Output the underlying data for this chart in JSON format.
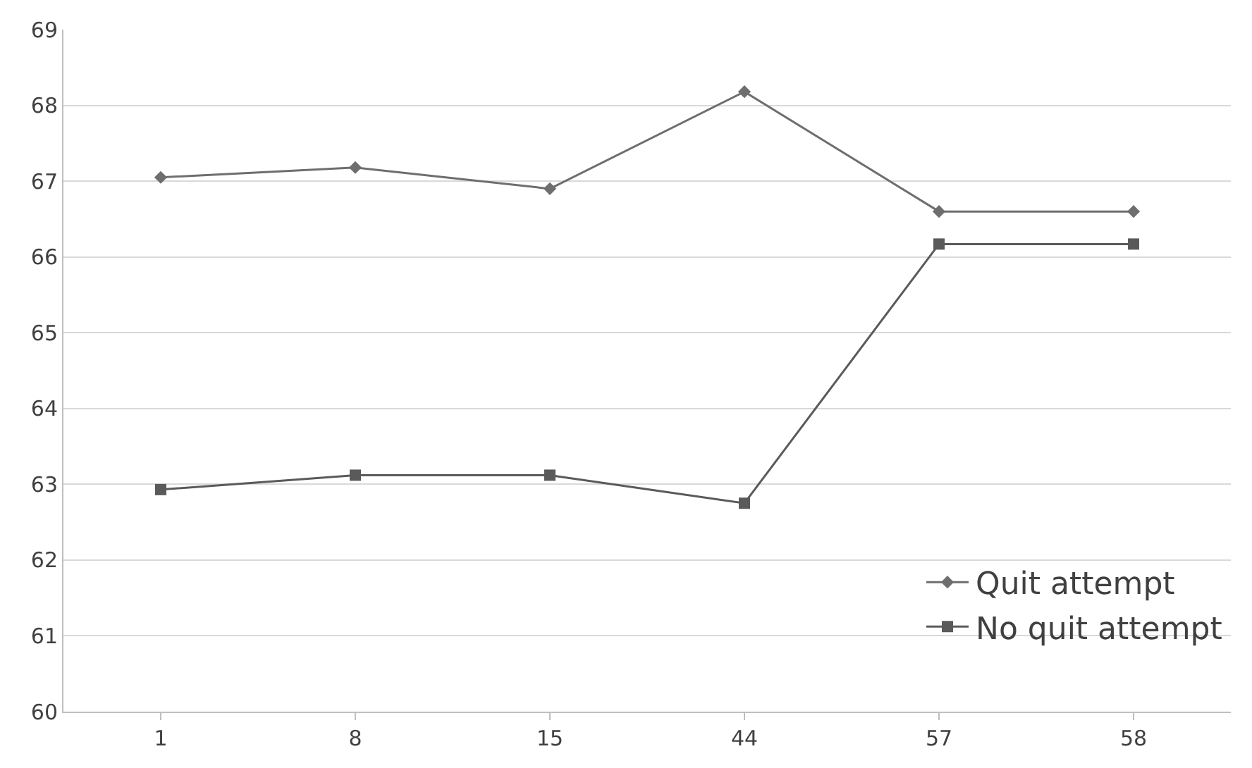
{
  "chart_data": {
    "type": "line",
    "categories": [
      "1",
      "8",
      "15",
      "44",
      "57",
      "58"
    ],
    "series": [
      {
        "name": "Quit attempt",
        "color": "#6e6e6e",
        "marker": "diamond",
        "values": [
          67.05,
          67.18,
          66.9,
          68.18,
          66.6,
          66.6
        ]
      },
      {
        "name": "No quit attempt",
        "color": "#5a5a5a",
        "marker": "square",
        "values": [
          62.93,
          63.12,
          63.12,
          62.75,
          66.17,
          66.17
        ]
      }
    ],
    "ylim": [
      60,
      69
    ],
    "yticks": [
      60,
      61,
      62,
      63,
      64,
      65,
      66,
      67,
      68,
      69
    ],
    "grid": "y",
    "legend": "bottom right",
    "line_style": "solid"
  }
}
